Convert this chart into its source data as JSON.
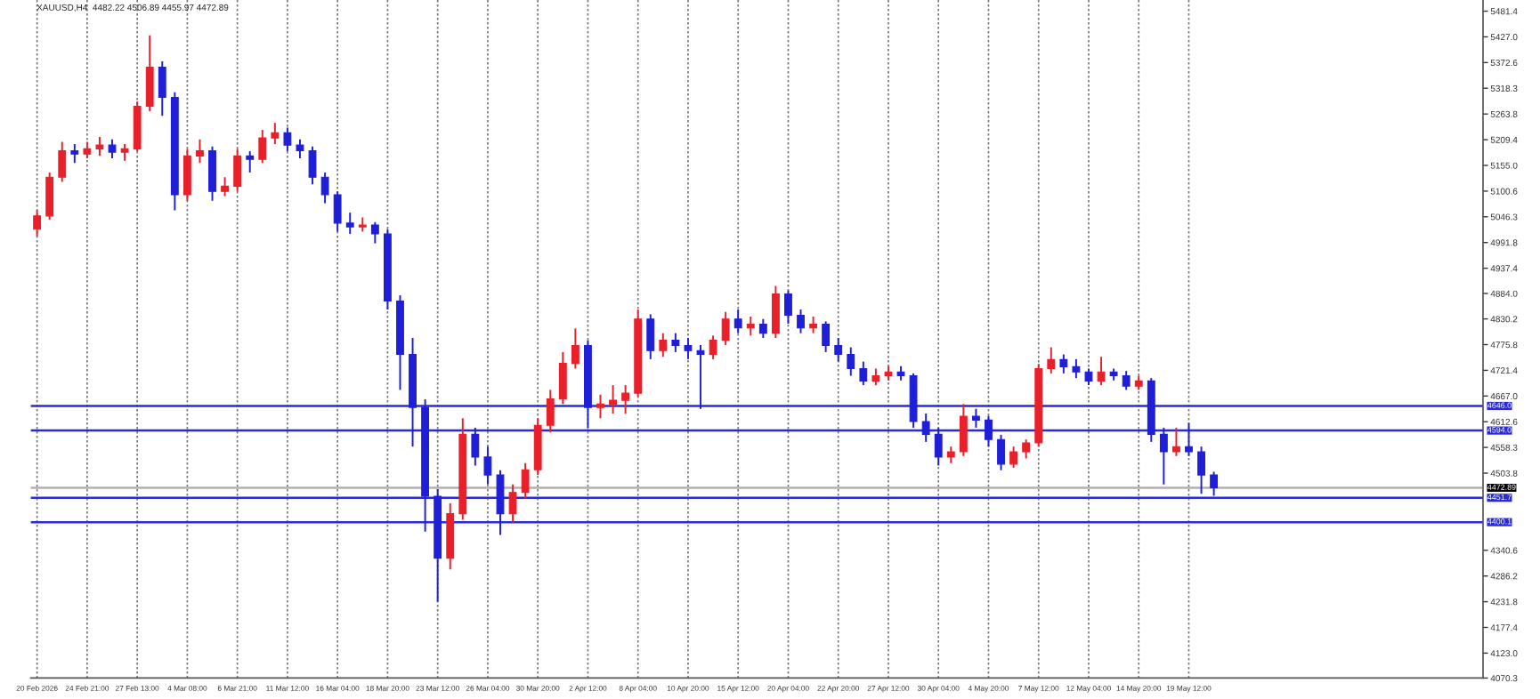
{
  "chart_data": {
    "type": "candlestick",
    "title": "XAUUSD,H4  4482.22 4506.89 4455.97 4472.89",
    "categories": [
      "20 Feb 2026",
      null,
      null,
      null,
      "24 Feb 21:00",
      null,
      null,
      null,
      "27 Feb 13:00",
      null,
      null,
      null,
      "4 Mar 08:00",
      null,
      null,
      null,
      "6 Mar 21:00",
      null,
      null,
      null,
      "11 Mar 12:00",
      null,
      null,
      null,
      "16 Mar 04:00",
      null,
      null,
      null,
      "18 Mar 20:00",
      null,
      null,
      null,
      "23 Mar 12:00",
      null,
      null,
      null,
      "26 Mar 04:00",
      null,
      null,
      null,
      "30 Mar 20:00",
      null,
      null,
      null,
      "2 Apr 12:00",
      null,
      null,
      null,
      "8 Apr 04:00",
      null,
      null,
      null,
      "10 Apr 20:00",
      null,
      null,
      null,
      "15 Apr 12:00",
      null,
      null,
      null,
      "20 Apr 04:00",
      null,
      null,
      null,
      "22 Apr 20:00",
      null,
      null,
      null,
      "27 Apr 12:00",
      null,
      null,
      null,
      "30 Apr 04:00",
      null,
      null,
      null,
      "4 May 20:00",
      null,
      null,
      null,
      "7 May 12:00",
      null,
      null,
      null,
      "12 May 04:00",
      null,
      null,
      null,
      "14 May 20:00",
      null,
      null,
      null,
      "19 May 12:00",
      null,
      null,
      null,
      null,
      null,
      null,
      null,
      null,
      null,
      null,
      null,
      null,
      null,
      null,
      null,
      null,
      null,
      null,
      null,
      null,
      null,
      null,
      null
    ],
    "ohlc": [
      [
        5020,
        5060,
        5005,
        5048
      ],
      [
        5048,
        5140,
        5040,
        5130
      ],
      [
        5130,
        5205,
        5120,
        5186
      ],
      [
        5186,
        5200,
        5160,
        5179
      ],
      [
        5179,
        5205,
        5170,
        5190
      ],
      [
        5190,
        5215,
        5175,
        5198
      ],
      [
        5198,
        5210,
        5170,
        5183
      ],
      [
        5183,
        5200,
        5165,
        5190
      ],
      [
        5190,
        5290,
        5185,
        5280
      ],
      [
        5280,
        5430,
        5270,
        5363
      ],
      [
        5363,
        5375,
        5260,
        5299
      ],
      [
        5299,
        5310,
        5060,
        5093
      ],
      [
        5093,
        5190,
        5080,
        5175
      ],
      [
        5175,
        5210,
        5160,
        5186
      ],
      [
        5186,
        5195,
        5080,
        5100
      ],
      [
        5100,
        5130,
        5090,
        5111
      ],
      [
        5111,
        5190,
        5100,
        5175
      ],
      [
        5175,
        5185,
        5140,
        5168
      ],
      [
        5168,
        5230,
        5160,
        5213
      ],
      [
        5213,
        5245,
        5200,
        5224
      ],
      [
        5224,
        5235,
        5185,
        5198
      ],
      [
        5198,
        5210,
        5170,
        5186
      ],
      [
        5186,
        5195,
        5115,
        5130
      ],
      [
        5130,
        5140,
        5075,
        5093
      ],
      [
        5093,
        5100,
        5015,
        5033
      ],
      [
        5033,
        5055,
        5010,
        5025
      ],
      [
        5025,
        5045,
        5015,
        5029
      ],
      [
        5029,
        5035,
        4990,
        5010
      ],
      [
        5010,
        5020,
        4850,
        4868
      ],
      [
        4868,
        4880,
        4680,
        4755
      ],
      [
        4755,
        4790,
        4560,
        4643
      ],
      [
        4643,
        4660,
        4380,
        4455
      ],
      [
        4455,
        4470,
        4232,
        4324
      ],
      [
        4324,
        4440,
        4300,
        4418
      ],
      [
        4418,
        4620,
        4405,
        4586
      ],
      [
        4586,
        4600,
        4520,
        4538
      ],
      [
        4538,
        4560,
        4480,
        4500
      ],
      [
        4500,
        4510,
        4373,
        4418
      ],
      [
        4418,
        4480,
        4400,
        4463
      ],
      [
        4463,
        4525,
        4450,
        4511
      ],
      [
        4511,
        4620,
        4500,
        4605
      ],
      [
        4605,
        4680,
        4590,
        4661
      ],
      [
        4661,
        4760,
        4650,
        4736
      ],
      [
        4736,
        4810,
        4725,
        4774
      ],
      [
        4774,
        4785,
        4600,
        4643
      ],
      [
        4643,
        4670,
        4620,
        4650
      ],
      [
        4650,
        4690,
        4630,
        4658
      ],
      [
        4658,
        4690,
        4630,
        4673
      ],
      [
        4673,
        4850,
        4665,
        4830
      ],
      [
        4830,
        4840,
        4745,
        4763
      ],
      [
        4763,
        4800,
        4750,
        4785
      ],
      [
        4785,
        4800,
        4760,
        4774
      ],
      [
        4774,
        4790,
        4745,
        4763
      ],
      [
        4763,
        4775,
        4640,
        4755
      ],
      [
        4755,
        4795,
        4745,
        4785
      ],
      [
        4785,
        4845,
        4775,
        4830
      ],
      [
        4830,
        4850,
        4800,
        4811
      ],
      [
        4811,
        4835,
        4795,
        4819
      ],
      [
        4819,
        4830,
        4790,
        4800
      ],
      [
        4800,
        4900,
        4790,
        4883
      ],
      [
        4883,
        4890,
        4820,
        4838
      ],
      [
        4838,
        4850,
        4800,
        4811
      ],
      [
        4811,
        4835,
        4800,
        4819
      ],
      [
        4819,
        4825,
        4760,
        4774
      ],
      [
        4774,
        4790,
        4740,
        4755
      ],
      [
        4755,
        4770,
        4710,
        4725
      ],
      [
        4725,
        4740,
        4690,
        4699
      ],
      [
        4699,
        4725,
        4690,
        4710
      ],
      [
        4710,
        4730,
        4700,
        4718
      ],
      [
        4718,
        4730,
        4700,
        4710
      ],
      [
        4710,
        4715,
        4600,
        4613
      ],
      [
        4613,
        4630,
        4570,
        4586
      ],
      [
        4586,
        4600,
        4520,
        4538
      ],
      [
        4538,
        4560,
        4525,
        4549
      ],
      [
        4549,
        4650,
        4540,
        4624
      ],
      [
        4624,
        4640,
        4600,
        4616
      ],
      [
        4616,
        4625,
        4560,
        4575
      ],
      [
        4575,
        4585,
        4510,
        4523
      ],
      [
        4523,
        4560,
        4515,
        4549
      ],
      [
        4549,
        4575,
        4535,
        4568
      ],
      [
        4568,
        4735,
        4560,
        4725
      ],
      [
        4725,
        4770,
        4715,
        4744
      ],
      [
        4744,
        4755,
        4715,
        4729
      ],
      [
        4729,
        4745,
        4705,
        4718
      ],
      [
        4718,
        4725,
        4690,
        4699
      ],
      [
        4699,
        4750,
        4690,
        4718
      ],
      [
        4718,
        4725,
        4700,
        4710
      ],
      [
        4710,
        4720,
        4680,
        4688
      ],
      [
        4688,
        4710,
        4680,
        4699
      ],
      [
        4699,
        4705,
        4570,
        4586
      ],
      [
        4586,
        4600,
        4480,
        4549
      ],
      [
        4549,
        4600,
        4540,
        4560
      ],
      [
        4560,
        4610,
        4540,
        4549
      ],
      [
        4549,
        4560,
        4460,
        4500
      ],
      [
        4500,
        4506.89,
        4455.97,
        4472.89
      ],
      null,
      null,
      null,
      null,
      null,
      null,
      null,
      null,
      null,
      null,
      null,
      null,
      null,
      null,
      null,
      null,
      null,
      null,
      null,
      null,
      null
    ],
    "colors": [
      "#e8202a",
      "#e8202a",
      "#e8202a",
      "#1f1fd8",
      "#e8202a",
      "#e8202a",
      "#1f1fd8",
      "#e8202a",
      "#e8202a",
      "#e8202a",
      "#1f1fd8",
      "#1f1fd8",
      "#e8202a",
      "#e8202a",
      "#1f1fd8",
      "#e8202a",
      "#e8202a",
      "#1f1fd8",
      "#e8202a",
      "#e8202a",
      "#1f1fd8",
      "#1f1fd8",
      "#1f1fd8",
      "#1f1fd8",
      "#1f1fd8",
      "#1f1fd8",
      "#e8202a",
      "#1f1fd8",
      "#1f1fd8",
      "#1f1fd8",
      "#1f1fd8",
      "#1f1fd8",
      "#1f1fd8",
      "#e8202a",
      "#e8202a",
      "#1f1fd8",
      "#1f1fd8",
      "#1f1fd8",
      "#e8202a",
      "#e8202a",
      "#e8202a",
      "#e8202a",
      "#e8202a",
      "#e8202a",
      "#1f1fd8",
      "#e8202a",
      "#e8202a",
      "#e8202a",
      "#e8202a",
      "#1f1fd8",
      "#e8202a",
      "#1f1fd8",
      "#1f1fd8",
      "#1f1fd8",
      "#e8202a",
      "#e8202a",
      "#1f1fd8",
      "#e8202a",
      "#1f1fd8",
      "#e8202a",
      "#1f1fd8",
      "#1f1fd8",
      "#e8202a",
      "#1f1fd8",
      "#1f1fd8",
      "#1f1fd8",
      "#1f1fd8",
      "#e8202a",
      "#e8202a",
      "#1f1fd8",
      "#1f1fd8",
      "#1f1fd8",
      "#1f1fd8",
      "#e8202a",
      "#e8202a",
      "#1f1fd8",
      "#1f1fd8",
      "#1f1fd8",
      "#e8202a",
      "#e8202a",
      "#e8202a",
      "#e8202a",
      "#1f1fd8",
      "#1f1fd8",
      "#1f1fd8",
      "#e8202a",
      "#1f1fd8",
      "#1f1fd8",
      "#e8202a",
      "#1f1fd8",
      "#1f1fd8",
      "#e8202a",
      "#1f1fd8",
      "#1f1fd8",
      "#1f1fd8",
      null,
      null,
      null,
      null,
      null,
      null,
      null,
      null,
      null,
      null,
      null,
      null,
      null,
      null,
      null,
      null,
      null,
      null,
      null,
      null,
      null
    ],
    "ylim": [
      4070.3,
      5505
    ],
    "yticks": [
      5481.4,
      {
        "value": 5427,
        "label": "5427.0"
      },
      5372.6,
      5318.3,
      5263.8,
      5209.4,
      {
        "value": 5155,
        "label": "5155.0"
      },
      5100.6,
      5046.3,
      4991.8,
      4937.4,
      {
        "value": 4884,
        "label": "4884.0"
      },
      4830.2,
      4775.8,
      4721.4,
      {
        "value": 4667,
        "label": "4667.0"
      },
      4612.6,
      4558.3,
      4503.8,
      4340.6,
      4286.2,
      4231.8,
      4177.4,
      {
        "value": 4123,
        "label": "4123.0"
      },
      4070.3
    ],
    "ref_lines": [
      {
        "axis": "y",
        "value": 4646.0,
        "label": "4646.0",
        "color": "#2b2bd6"
      },
      {
        "axis": "y",
        "value": 4594.0,
        "label": "4594.0",
        "color": "#2b2bd6"
      },
      {
        "axis": "y",
        "value": 4472.89,
        "label": "4472.89",
        "color": "#b0b0b0"
      },
      {
        "axis": "y",
        "value": 4451.7,
        "label": "4451.7",
        "color": "#2b2bd6"
      },
      {
        "axis": "y",
        "value": 4400.1,
        "label": "4400.1",
        "color": "#2b2bd6"
      }
    ],
    "grid": "x"
  }
}
